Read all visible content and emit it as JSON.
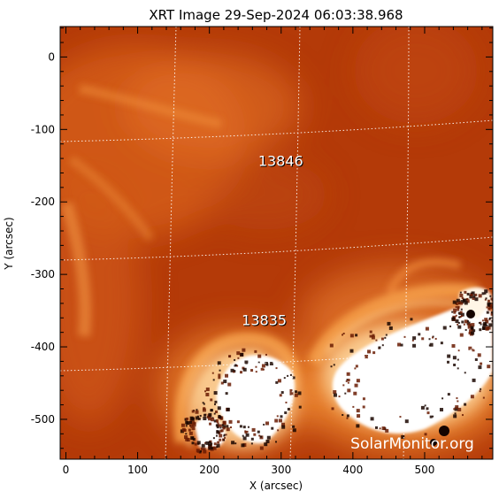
{
  "title": "XRT Image 29-Sep-2024 06:03:38.968",
  "axes": {
    "x": {
      "label": "X (arcsec)",
      "range": [
        -8,
        595
      ],
      "ticks": [
        0,
        100,
        200,
        300,
        400,
        500
      ]
    },
    "y": {
      "label": "Y (arcsec)",
      "range": [
        -555,
        42
      ],
      "ticks": [
        0,
        -100,
        -200,
        -300,
        -400,
        -500
      ]
    }
  },
  "regions": [
    {
      "label": "13846",
      "x": 268,
      "y": -150
    },
    {
      "label": "13835",
      "x": 245,
      "y": -370
    }
  ],
  "watermark": "SolarMonitor.org",
  "colors": {
    "background": "#b43a08",
    "glow": "#f08a32",
    "hot": "#ffffff",
    "grid": "#ffffff"
  }
}
